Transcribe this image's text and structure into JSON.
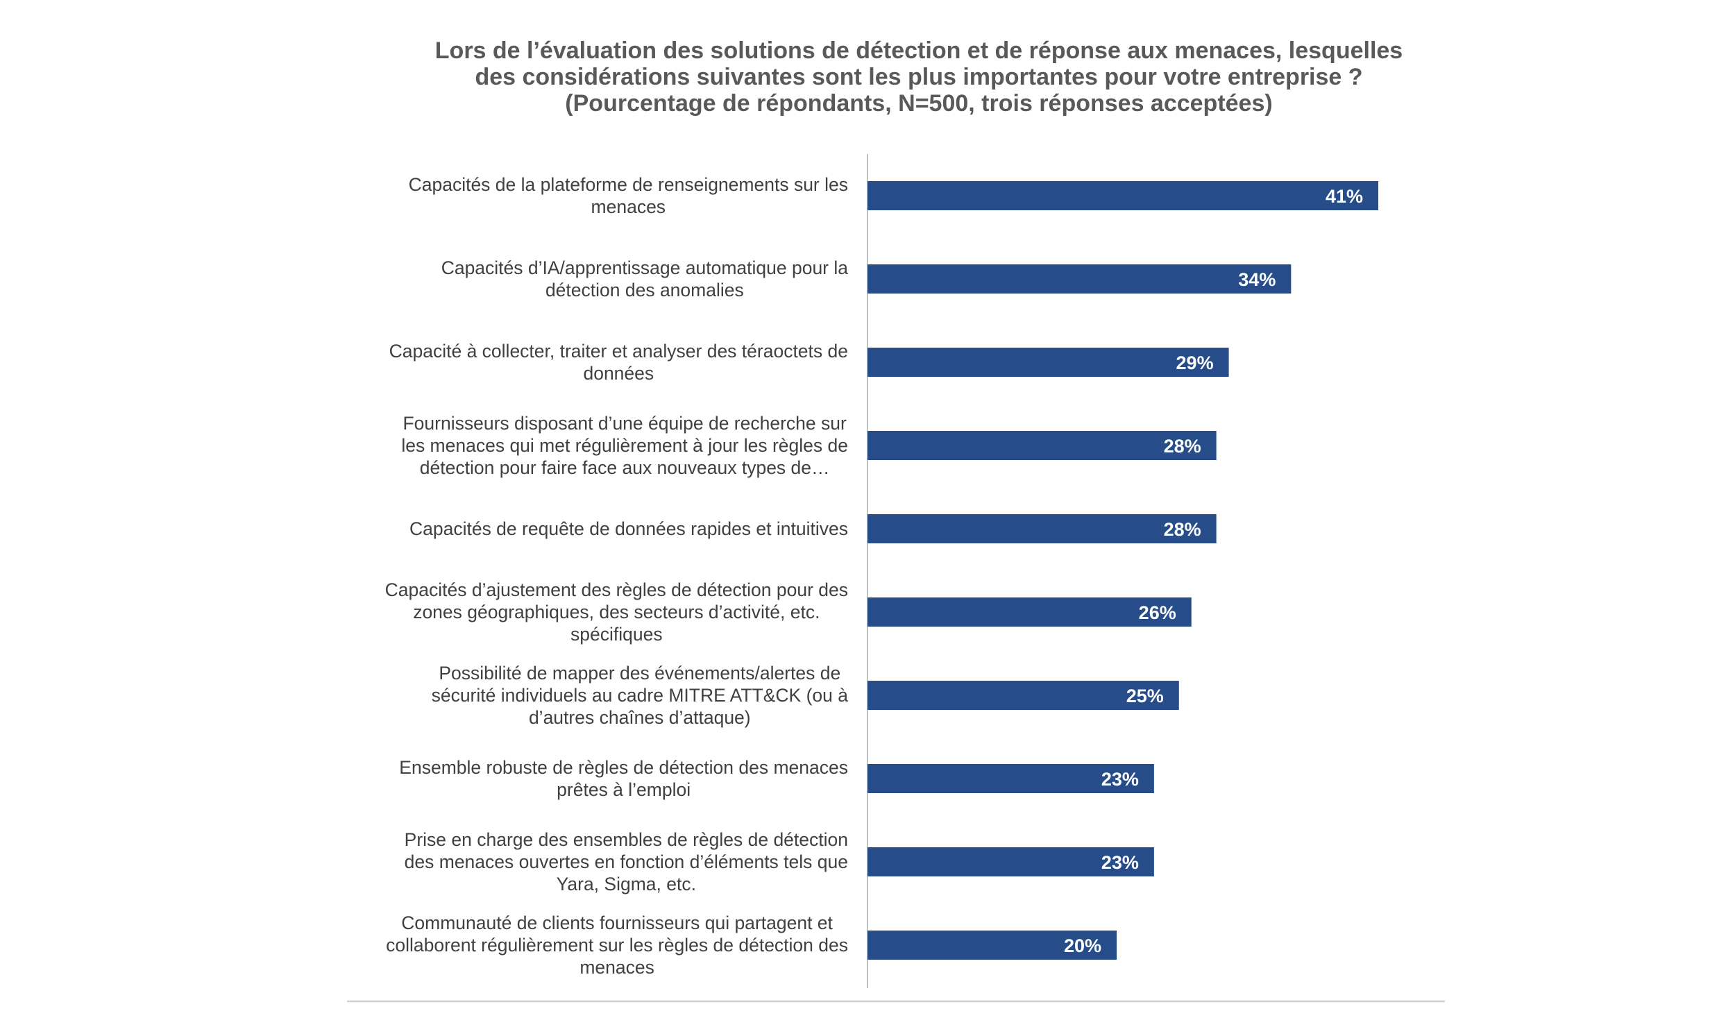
{
  "chart_data": {
    "type": "bar",
    "orientation": "horizontal",
    "title": [
      "Lors de l’évaluation des solutions de détection et de réponse aux menaces, lesquelles",
      "des considérations suivantes sont les plus importantes pour votre entreprise ?",
      "(Pourcentage de répondants, N=500, trois réponses acceptées)"
    ],
    "unit": "%",
    "xlim": [
      0,
      41
    ],
    "categories": [
      [
        "Capacités de la plateforme de renseignements sur les",
        "menaces"
      ],
      [
        "Capacités d’IA/apprentissage automatique pour la",
        "détection des anomalies"
      ],
      [
        "Capacité à collecter, traiter et analyser des téraoctets de",
        "données"
      ],
      [
        "Fournisseurs disposant d’une équipe de recherche sur",
        "les menaces qui met régulièrement à jour les règles de",
        "détection pour faire face aux nouveaux types de…"
      ],
      [
        "Capacités de requête de données rapides et intuitives"
      ],
      [
        "Capacités d’ajustement des règles de détection pour des",
        "zones géographiques, des secteurs d’activité, etc.",
        "spécifiques"
      ],
      [
        "Possibilité de mapper des événements/alertes de",
        "sécurité individuels au cadre MITRE ATT&CK (ou à",
        "d’autres chaînes d’attaque)"
      ],
      [
        "Ensemble robuste de règles de détection des menaces",
        "prêtes à l’emploi"
      ],
      [
        "Prise en charge des ensembles de règles de détection",
        "des menaces ouvertes en fonction d’éléments tels que",
        "Yara, Sigma, etc."
      ],
      [
        "Communauté de clients fournisseurs qui partagent et",
        "collaborent régulièrement sur les règles de détection des",
        "menaces"
      ]
    ],
    "values": [
      41,
      34,
      29,
      28,
      28,
      26,
      25,
      23,
      23,
      20
    ],
    "value_labels": [
      "41%",
      "34%",
      "29%",
      "28%",
      "28%",
      "26%",
      "25%",
      "23%",
      "23%",
      "20%"
    ],
    "colors": {
      "bar": "#264d8a",
      "value_label": "#ffffff",
      "title": "#595959",
      "category_label": "#404040"
    }
  }
}
